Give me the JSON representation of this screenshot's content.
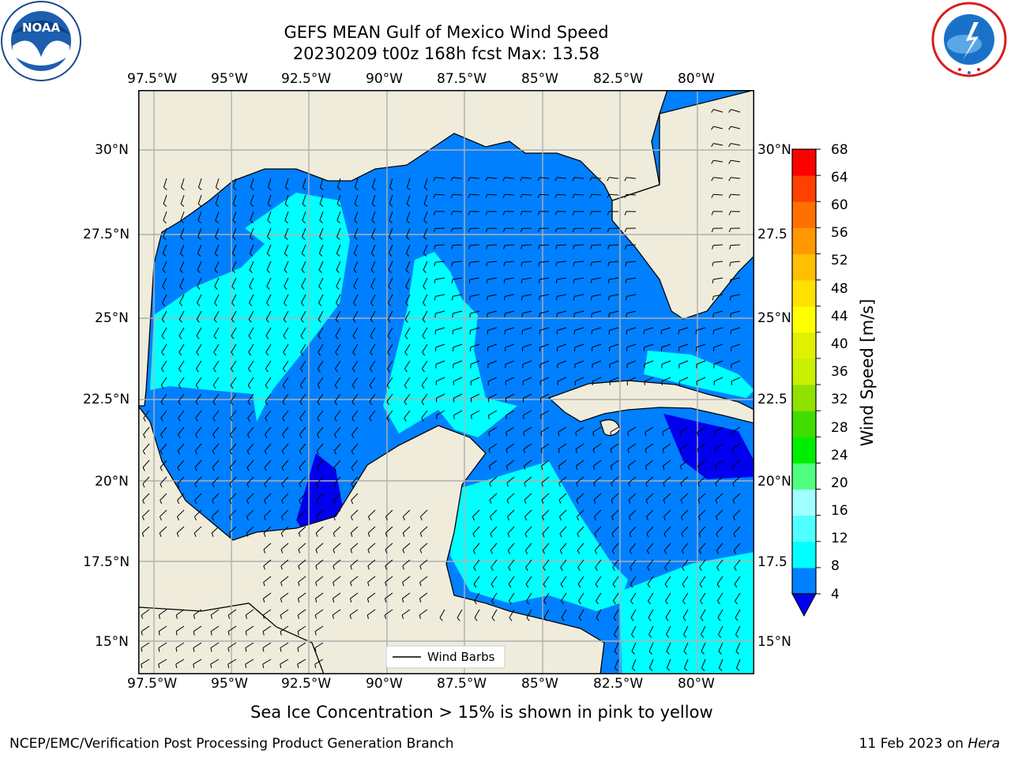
{
  "header": {
    "title_line1": "GEFS MEAN Gulf of Mexico Wind Speed",
    "title_line2": "20230209 t00z 168h fcst   Max: 13.58"
  },
  "logos": {
    "left": {
      "text": "NOAA",
      "ring_text": "NATIONAL OCEANIC AND ATMOSPHERIC ADMINISTRATION · U.S. DEPARTMENT OF COMMERCE"
    },
    "right": {
      "ring_text": "NATIONAL WEATHER SERVICE"
    }
  },
  "map": {
    "lon_labels": [
      "97.5°W",
      "95°W",
      "92.5°W",
      "90°W",
      "87.5°W",
      "85°W",
      "82.5°W",
      "80°W"
    ],
    "lat_labels": [
      "30°N",
      "27.5°N",
      "25°N",
      "22.5°N",
      "20°N",
      "17.5°N",
      "15°N"
    ],
    "lat_labels_right": [
      "30°N",
      "27.5",
      "25°N",
      "22.5",
      "20°N",
      "17.5",
      "15°N"
    ],
    "legend_label": "Wind Barbs",
    "colors": {
      "land": "#efecdc",
      "ocean_4_8": "#0080ff",
      "ocean_0_4": "#0000ee",
      "ocean_8_12": "#00ffff",
      "grid": "#b0b0b0"
    }
  },
  "colorbar": {
    "label": "Wind Speed [m/s]",
    "ticks": [
      "68",
      "64",
      "60",
      "56",
      "52",
      "48",
      "44",
      "40",
      "36",
      "32",
      "28",
      "24",
      "20",
      "16",
      "12",
      "8",
      "4"
    ],
    "colors_bottom_to_top": [
      "#0080ff",
      "#00ffff",
      "#50ffff",
      "#a0ffff",
      "#50ff80",
      "#00ee00",
      "#40dd00",
      "#90e000",
      "#c8f000",
      "#e0f000",
      "#ffff00",
      "#ffe000",
      "#ffc000",
      "#ff9800",
      "#ff7000",
      "#ff4000",
      "#ff0000"
    ],
    "extend_color": "#0000ee"
  },
  "note": "Sea Ice Concentration > 15% is shown in pink to yellow",
  "footer": {
    "left": "NCEP/EMC/Verification Post Processing Product Generation Branch",
    "right_date": "11 Feb 2023 on ",
    "right_host": "Hera"
  }
}
